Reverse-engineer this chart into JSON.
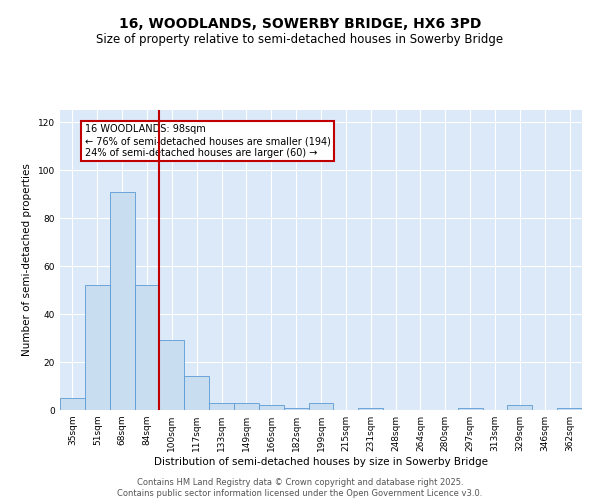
{
  "title": "16, WOODLANDS, SOWERBY BRIDGE, HX6 3PD",
  "subtitle": "Size of property relative to semi-detached houses in Sowerby Bridge",
  "xlabel": "Distribution of semi-detached houses by size in Sowerby Bridge",
  "ylabel": "Number of semi-detached properties",
  "categories": [
    "35sqm",
    "51sqm",
    "68sqm",
    "84sqm",
    "100sqm",
    "117sqm",
    "133sqm",
    "149sqm",
    "166sqm",
    "182sqm",
    "199sqm",
    "215sqm",
    "231sqm",
    "248sqm",
    "264sqm",
    "280sqm",
    "297sqm",
    "313sqm",
    "329sqm",
    "346sqm",
    "362sqm"
  ],
  "values": [
    5,
    52,
    91,
    52,
    29,
    14,
    3,
    3,
    2,
    1,
    3,
    0,
    1,
    0,
    0,
    0,
    1,
    0,
    2,
    0,
    1
  ],
  "bar_color": "#c9ddf0",
  "bar_edge_color": "#5b9bd5",
  "vline_color": "#c00000",
  "vline_x_index": 3.5,
  "annotation_text": "16 WOODLANDS: 98sqm\n← 76% of semi-detached houses are smaller (194)\n24% of semi-detached houses are larger (60) →",
  "annotation_box_color": "#c00000",
  "ylim": [
    0,
    125
  ],
  "yticks": [
    0,
    20,
    40,
    60,
    80,
    100,
    120
  ],
  "background_color": "#dce9f8",
  "footer_text": "Contains HM Land Registry data © Crown copyright and database right 2025.\nContains public sector information licensed under the Open Government Licence v3.0.",
  "title_fontsize": 10,
  "subtitle_fontsize": 8.5,
  "label_fontsize": 7.5,
  "tick_fontsize": 6.5,
  "footer_fontsize": 6,
  "annot_fontsize": 7
}
